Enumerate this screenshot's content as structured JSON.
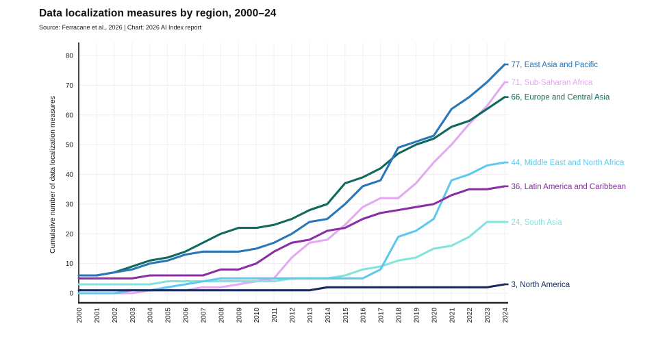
{
  "header": {
    "title": "Data localization measures by region, 2000–24",
    "source": "Source: Ferracane et al., 2026 | Chart: 2026 AI Index report"
  },
  "chart_data": {
    "type": "line",
    "title": "Data localization measures by region, 2000–24",
    "xlabel": "",
    "ylabel": "Cumulative number of data localization measures",
    "ylim": [
      0,
      80
    ],
    "yticks": [
      0,
      10,
      20,
      30,
      40,
      50,
      60,
      70,
      80
    ],
    "grid": true,
    "legend_position": "right-end-of-line-labels",
    "x": [
      2000,
      2001,
      2002,
      2003,
      2004,
      2005,
      2006,
      2007,
      2008,
      2009,
      2010,
      2011,
      2012,
      2013,
      2014,
      2015,
      2016,
      2017,
      2018,
      2019,
      2020,
      2021,
      2022,
      2023,
      2024
    ],
    "series": [
      {
        "name": "Sub-Saharan Africa",
        "end_label": "71, Sub-Saharan Africa",
        "end_value": 71,
        "color": "#e5a9f2",
        "values": [
          0,
          0,
          0,
          0,
          1,
          1,
          1,
          2,
          2,
          3,
          4,
          5,
          12,
          17,
          18,
          23,
          29,
          32,
          32,
          37,
          44,
          50,
          57,
          63,
          71
        ]
      },
      {
        "name": "South Asia",
        "end_label": "24, South Asia",
        "end_value": 24,
        "color": "#82e3df",
        "values": [
          3,
          3,
          3,
          3,
          3,
          4,
          4,
          4,
          4,
          4,
          4,
          4,
          5,
          5,
          5,
          6,
          8,
          9,
          11,
          12,
          15,
          16,
          19,
          24,
          24
        ]
      },
      {
        "name": "Middle East and North Africa",
        "end_label": "44, Middle East and North Africa",
        "end_value": 44,
        "color": "#5fc8ec",
        "values": [
          0,
          0,
          0,
          1,
          1,
          2,
          3,
          4,
          5,
          5,
          5,
          5,
          5,
          5,
          5,
          5,
          5,
          8,
          19,
          21,
          25,
          38,
          40,
          43,
          44
        ]
      },
      {
        "name": "Latin America and Caribbean",
        "end_label": "36, Latin America and Caribbean",
        "end_value": 36,
        "color": "#8a2fa5",
        "values": [
          5,
          5,
          5,
          5,
          6,
          6,
          6,
          6,
          8,
          8,
          10,
          14,
          17,
          18,
          21,
          22,
          25,
          27,
          28,
          29,
          30,
          33,
          35,
          35,
          36
        ]
      },
      {
        "name": "Europe and Central Asia",
        "end_label": "66, Europe and Central Asia",
        "end_value": 66,
        "color": "#11685c",
        "values": [
          6,
          6,
          7,
          9,
          11,
          12,
          14,
          17,
          20,
          22,
          22,
          23,
          25,
          28,
          30,
          37,
          39,
          42,
          47,
          50,
          52,
          56,
          58,
          62,
          66
        ]
      },
      {
        "name": "North America",
        "end_label": "3, North America",
        "end_value": 3,
        "color": "#1b2d5e",
        "values": [
          1,
          1,
          1,
          1,
          1,
          1,
          1,
          1,
          1,
          1,
          1,
          1,
          1,
          1,
          2,
          2,
          2,
          2,
          2,
          2,
          2,
          2,
          2,
          2,
          3
        ]
      },
      {
        "name": "East Asia and Pacific",
        "end_label": "77, East Asia and Pacific",
        "end_value": 77,
        "color": "#2a77b8",
        "values": [
          6,
          6,
          7,
          8,
          10,
          11,
          13,
          14,
          14,
          14,
          15,
          17,
          20,
          24,
          25,
          30,
          36,
          38,
          49,
          51,
          53,
          62,
          66,
          71,
          77
        ]
      }
    ]
  }
}
